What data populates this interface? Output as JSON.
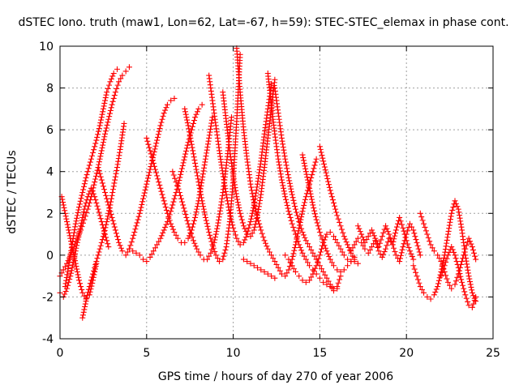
{
  "chart_data": {
    "type": "scatter",
    "title": "dSTEC Iono. truth (maw1, Lon=62, Lat=-67, h=59): STEC-STEC_elemax in phase cont.",
    "xlabel": "GPS time / hours of day 270 of year 2006",
    "ylabel": "dSTEC  / TECUs",
    "xlim": [
      0,
      25
    ],
    "ylim": [
      -4,
      10
    ],
    "xticks": [
      0,
      5,
      10,
      15,
      20,
      25
    ],
    "yticks": [
      -4,
      -2,
      0,
      2,
      4,
      6,
      8,
      10
    ],
    "xtick_labels": [
      "0",
      "5",
      "10",
      "15",
      "20",
      "25"
    ],
    "ytick_labels": [
      "-4",
      "-2",
      "0",
      "2",
      "4",
      "6",
      "8",
      "10"
    ],
    "grid": true,
    "marker": "plus",
    "color": "#ff0000",
    "series": [
      {
        "x": [
          0.0,
          0.2,
          0.4,
          0.6,
          0.8,
          1.0,
          1.2,
          1.4,
          1.6,
          1.8,
          2.0,
          2.2,
          2.4,
          2.6,
          2.8,
          3.0,
          3.2,
          3.4,
          3.6,
          3.8,
          4.0
        ],
        "y": [
          -1.0,
          -0.7,
          -0.4,
          0.0,
          0.4,
          0.8,
          1.2,
          1.7,
          2.2,
          2.8,
          3.5,
          4.2,
          5.0,
          5.8,
          6.5,
          7.2,
          7.8,
          8.3,
          8.6,
          8.8,
          9.0
        ]
      },
      {
        "x": [
          1.3,
          1.5,
          1.7,
          1.9,
          2.1,
          2.3,
          2.5,
          2.7,
          2.9,
          3.1,
          3.3,
          3.5,
          3.7
        ],
        "y": [
          -3.0,
          -2.2,
          -1.5,
          -0.9,
          -0.3,
          0.3,
          0.9,
          1.6,
          2.4,
          3.3,
          4.2,
          5.2,
          6.3
        ]
      },
      {
        "x": [
          0.3,
          0.5,
          0.7,
          0.9,
          1.1,
          1.3,
          1.5,
          1.7,
          1.9,
          2.1,
          2.3,
          2.5,
          2.7,
          2.9,
          3.1,
          3.3
        ],
        "y": [
          -1.5,
          -0.5,
          0.5,
          1.5,
          2.3,
          3.0,
          3.7,
          4.3,
          4.9,
          5.5,
          6.2,
          7.0,
          7.8,
          8.3,
          8.7,
          8.9
        ]
      },
      {
        "x": [
          2.2,
          2.4,
          2.6,
          2.8,
          3.0,
          3.2,
          3.4,
          3.6,
          3.8,
          4.0,
          4.2,
          4.4,
          4.6,
          4.8,
          5.0,
          5.2,
          5.4,
          5.6,
          5.8,
          6.0,
          6.2,
          6.4,
          6.6
        ],
        "y": [
          4.2,
          3.6,
          3.0,
          2.4,
          1.8,
          1.2,
          0.6,
          0.2,
          0.0,
          0.3,
          0.8,
          1.4,
          2.0,
          2.7,
          3.4,
          4.1,
          4.8,
          5.5,
          6.2,
          6.8,
          7.2,
          7.4,
          7.5
        ]
      },
      {
        "x": [
          4.0,
          4.2,
          4.4,
          4.6,
          4.8,
          5.0,
          5.2,
          5.4,
          5.6,
          5.8,
          6.0,
          6.2,
          6.4,
          6.6,
          6.8,
          7.0,
          7.2,
          7.4,
          7.6,
          7.8,
          8.0,
          8.2
        ],
        "y": [
          0.3,
          0.2,
          0.1,
          0.0,
          -0.2,
          -0.3,
          -0.1,
          0.2,
          0.5,
          0.8,
          1.2,
          1.6,
          2.1,
          2.7,
          3.3,
          4.0,
          4.7,
          5.4,
          6.0,
          6.6,
          7.0,
          7.2
        ]
      },
      {
        "x": [
          5.0,
          5.2,
          5.4,
          5.6,
          5.8,
          6.0,
          6.2,
          6.4,
          6.6,
          6.8,
          7.0,
          7.2,
          7.4,
          7.6,
          7.8,
          8.0,
          8.2,
          8.4,
          8.6,
          8.8
        ],
        "y": [
          5.6,
          5.0,
          4.4,
          3.8,
          3.2,
          2.6,
          2.0,
          1.5,
          1.1,
          0.8,
          0.6,
          0.6,
          0.8,
          1.2,
          1.8,
          2.6,
          3.6,
          4.6,
          5.6,
          6.6
        ]
      },
      {
        "x": [
          6.5,
          6.7,
          6.9,
          7.1,
          7.3,
          7.5,
          7.7,
          7.9,
          8.1,
          8.3,
          8.5,
          8.7,
          8.9,
          9.1,
          9.3,
          9.5,
          9.7,
          9.9
        ],
        "y": [
          4.0,
          3.5,
          3.0,
          2.4,
          1.8,
          1.2,
          0.7,
          0.3,
          0.0,
          -0.2,
          -0.2,
          0.1,
          0.6,
          1.4,
          2.4,
          3.6,
          5.0,
          6.6
        ]
      },
      {
        "x": [
          7.2,
          7.4,
          7.6,
          7.8,
          8.0,
          8.2,
          8.4,
          8.6,
          8.8,
          9.0,
          9.2,
          9.4,
          9.6,
          9.8,
          10.0,
          10.2,
          10.4
        ],
        "y": [
          7.0,
          6.2,
          5.3,
          4.4,
          3.5,
          2.6,
          1.8,
          1.1,
          0.5,
          0.0,
          -0.3,
          -0.2,
          0.4,
          1.6,
          3.6,
          6.4,
          9.6
        ]
      },
      {
        "x": [
          8.6,
          8.8,
          9.0,
          9.2,
          9.4,
          9.6,
          9.8,
          10.0,
          10.2,
          10.4,
          10.6,
          10.8,
          11.0,
          11.2,
          11.4,
          11.6,
          11.8,
          12.0,
          12.2
        ],
        "y": [
          8.6,
          7.4,
          6.2,
          5.0,
          3.9,
          2.9,
          2.0,
          1.3,
          0.8,
          0.5,
          0.6,
          1.0,
          1.6,
          2.4,
          3.4,
          4.5,
          5.8,
          7.0,
          8.2
        ]
      },
      {
        "x": [
          9.4,
          9.6,
          9.8,
          10.0,
          10.2,
          10.4,
          10.6,
          10.8,
          11.0,
          11.2,
          11.4,
          11.6,
          11.8,
          12.0,
          12.2,
          12.4
        ],
        "y": [
          7.8,
          6.4,
          5.0,
          3.8,
          2.8,
          2.0,
          1.4,
          1.0,
          0.9,
          1.2,
          1.9,
          2.9,
          4.2,
          5.6,
          7.0,
          8.4
        ]
      },
      {
        "x": [
          10.2,
          10.4,
          10.6,
          10.8,
          11.0,
          11.2,
          11.4,
          11.6,
          11.8,
          12.0,
          12.2,
          12.4,
          12.6,
          12.8,
          13.0,
          13.2,
          13.4,
          13.6,
          13.8,
          14.0,
          14.2,
          14.4,
          14.6,
          14.8
        ],
        "y": [
          9.9,
          7.8,
          6.0,
          4.6,
          3.4,
          2.5,
          1.8,
          1.2,
          0.7,
          0.3,
          0.0,
          -0.3,
          -0.6,
          -0.9,
          -1.0,
          -0.7,
          -0.2,
          0.5,
          1.3,
          2.1,
          2.8,
          3.4,
          4.0,
          4.6
        ]
      },
      {
        "x": [
          10.6,
          10.8,
          11.0,
          11.2,
          11.4,
          11.6,
          11.8,
          12.0,
          12.2,
          12.4
        ],
        "y": [
          -0.2,
          -0.3,
          -0.4,
          -0.5,
          -0.6,
          -0.7,
          -0.8,
          -0.9,
          -1.0,
          -1.1
        ]
      },
      {
        "x": [
          12.0,
          12.2,
          12.4,
          12.6,
          12.8,
          13.0,
          13.2,
          13.4,
          13.6,
          13.8,
          14.0,
          14.2,
          14.4,
          14.6,
          14.8,
          15.0,
          15.2,
          15.4,
          15.6,
          15.8,
          16.0
        ],
        "y": [
          8.7,
          7.2,
          5.8,
          4.6,
          3.6,
          2.8,
          2.1,
          1.5,
          1.0,
          0.5,
          0.1,
          -0.2,
          -0.5,
          -0.7,
          -0.9,
          -1.1,
          -1.3,
          -1.4,
          -1.5,
          -1.6,
          -1.6
        ]
      },
      {
        "x": [
          12.4,
          12.6,
          12.8,
          13.0,
          13.2,
          13.4,
          13.6,
          13.8,
          14.0,
          14.2,
          14.4,
          14.6,
          14.8,
          15.0,
          15.2,
          15.4,
          15.6,
          15.8,
          16.0,
          16.2
        ],
        "y": [
          8.0,
          6.8,
          5.6,
          4.6,
          3.7,
          2.9,
          2.2,
          1.6,
          1.1,
          0.7,
          0.4,
          0.1,
          -0.2,
          -0.5,
          -0.8,
          -1.1,
          -1.4,
          -1.7,
          -1.5,
          -1.0
        ]
      },
      {
        "x": [
          13.0,
          13.2,
          13.4,
          13.6,
          13.8,
          14.0,
          14.2,
          14.4,
          14.6,
          14.8,
          15.0,
          15.2,
          15.4,
          15.6,
          15.8,
          16.0,
          16.2,
          16.4,
          16.6,
          16.8,
          17.0
        ],
        "y": [
          0.0,
          -0.2,
          -0.5,
          -0.8,
          -1.0,
          -1.2,
          -1.3,
          -1.2,
          -0.9,
          -0.5,
          0.0,
          0.6,
          1.0,
          1.1,
          0.9,
          0.6,
          0.3,
          0.0,
          -0.2,
          -0.3,
          -0.3
        ]
      },
      {
        "x": [
          14.0,
          14.2,
          14.4,
          14.6,
          14.8,
          15.0,
          15.2,
          15.4,
          15.6,
          15.8,
          16.0,
          16.2,
          16.4,
          16.6,
          16.8,
          17.0
        ],
        "y": [
          4.8,
          4.0,
          3.2,
          2.4,
          1.7,
          1.1,
          0.6,
          0.2,
          -0.2,
          -0.5,
          -0.7,
          -0.8,
          -0.7,
          -0.5,
          -0.3,
          -0.1
        ]
      },
      {
        "x": [
          15.0,
          15.2,
          15.4,
          15.6,
          15.8,
          16.0,
          16.2,
          16.4,
          16.6,
          16.8,
          17.0,
          17.2
        ],
        "y": [
          5.2,
          4.5,
          3.8,
          3.1,
          2.5,
          1.9,
          1.4,
          0.9,
          0.5,
          0.1,
          -0.2,
          -0.4
        ]
      },
      {
        "x": [
          16.8,
          17.0,
          17.2,
          17.4,
          17.6,
          17.8,
          18.0,
          18.2,
          18.4,
          18.6,
          18.8,
          19.0,
          19.2,
          19.4,
          19.6,
          19.8,
          20.0,
          20.2,
          20.4,
          20.6,
          20.8
        ],
        "y": [
          0.2,
          0.5,
          0.8,
          0.6,
          0.3,
          0.1,
          0.4,
          0.7,
          0.2,
          -0.1,
          0.3,
          0.8,
          0.5,
          0.0,
          -0.3,
          0.4,
          1.0,
          1.5,
          1.2,
          0.6,
          0.0
        ]
      },
      {
        "x": [
          17.2,
          17.4,
          17.6,
          17.8,
          18.0,
          18.2,
          18.4,
          18.6,
          18.8,
          19.0,
          19.2,
          19.4,
          19.6,
          19.8,
          20.0,
          20.2,
          20.4
        ],
        "y": [
          1.4,
          1.0,
          0.6,
          0.9,
          1.2,
          0.8,
          0.4,
          0.9,
          1.4,
          1.0,
          0.5,
          1.2,
          1.8,
          1.3,
          0.7,
          0.2,
          -0.2
        ]
      },
      {
        "x": [
          20.4,
          20.6,
          20.8,
          21.0,
          21.2,
          21.4,
          21.6,
          21.8,
          22.0,
          22.2,
          22.4,
          22.6,
          22.8,
          23.0,
          23.2,
          23.4,
          23.6,
          23.8,
          24.0
        ],
        "y": [
          -0.5,
          -1.0,
          -1.5,
          -1.8,
          -2.0,
          -2.1,
          -1.9,
          -1.5,
          -0.8,
          0.0,
          1.0,
          2.0,
          2.6,
          2.2,
          1.2,
          0.0,
          -1.0,
          -1.8,
          -2.2
        ]
      },
      {
        "x": [
          20.8,
          21.0,
          21.2,
          21.4,
          21.6,
          21.8,
          22.0,
          22.2,
          22.4,
          22.6,
          22.8,
          23.0,
          23.2,
          23.4,
          23.6,
          23.8,
          24.0
        ],
        "y": [
          2.0,
          1.5,
          1.0,
          0.5,
          0.2,
          0.0,
          -0.3,
          -0.8,
          -1.3,
          -1.6,
          -1.4,
          -0.9,
          -0.3,
          0.3,
          0.8,
          0.4,
          -0.2
        ]
      },
      {
        "x": [
          22.0,
          22.2,
          22.4,
          22.6,
          22.8,
          23.0,
          23.2,
          23.4,
          23.6,
          23.8,
          24.0
        ],
        "y": [
          -1.0,
          -0.5,
          0.0,
          0.4,
          0.0,
          -0.6,
          -1.3,
          -1.9,
          -2.4,
          -2.5,
          -2.0
        ]
      },
      {
        "x": [
          0.1,
          0.3,
          0.5,
          0.7,
          0.9,
          1.1,
          1.3,
          1.5,
          1.7,
          1.9,
          2.1
        ],
        "y": [
          2.8,
          2.0,
          1.2,
          0.4,
          -0.4,
          -1.2,
          -1.8,
          -2.1,
          -1.9,
          -1.2,
          -0.4
        ]
      },
      {
        "x": [
          0.0,
          0.2,
          0.4,
          0.6,
          0.8,
          1.0,
          1.2,
          1.4,
          1.6,
          1.8,
          2.0,
          2.2,
          2.4,
          2.6,
          2.8
        ],
        "y": [
          -1.8,
          -2.0,
          -1.6,
          -1.0,
          -0.2,
          0.6,
          1.4,
          2.2,
          2.8,
          3.2,
          2.8,
          2.2,
          1.6,
          1.0,
          0.4
        ]
      }
    ]
  }
}
